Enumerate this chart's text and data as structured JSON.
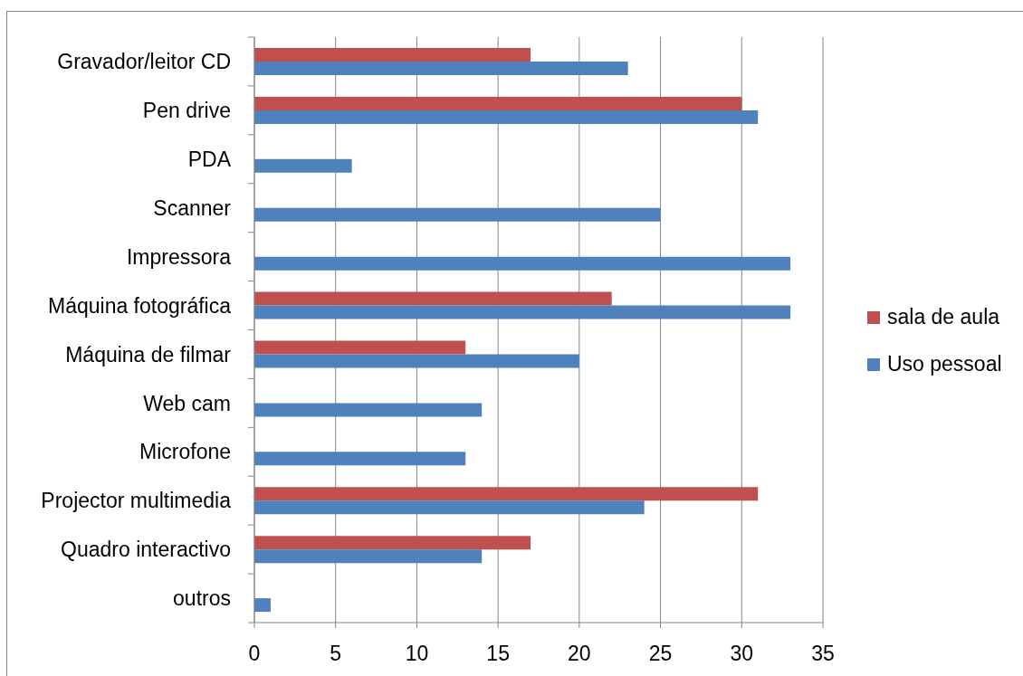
{
  "chart_data": {
    "type": "bar",
    "orientation": "horizontal",
    "categories": [
      "Gravador/leitor CD",
      "Pen drive",
      "PDA",
      "Scanner",
      "Impressora",
      "Máquina fotográfica",
      "Máquina de filmar",
      "Web cam",
      "Microfone",
      "Projector multimedia",
      "Quadro interactivo",
      "outros"
    ],
    "series": [
      {
        "name": "sala de aula",
        "color": "#c0504d",
        "values": [
          17,
          30,
          null,
          null,
          null,
          22,
          13,
          null,
          null,
          31,
          17,
          null
        ]
      },
      {
        "name": "Uso pessoal",
        "color": "#4f81bd",
        "values": [
          23,
          31,
          6,
          25,
          33,
          33,
          20,
          14,
          13,
          24,
          14,
          1
        ]
      }
    ],
    "xlim": [
      0,
      35
    ],
    "xticks": [
      0,
      5,
      10,
      15,
      20,
      25,
      30,
      35
    ],
    "grid": "x",
    "legend": "right"
  }
}
